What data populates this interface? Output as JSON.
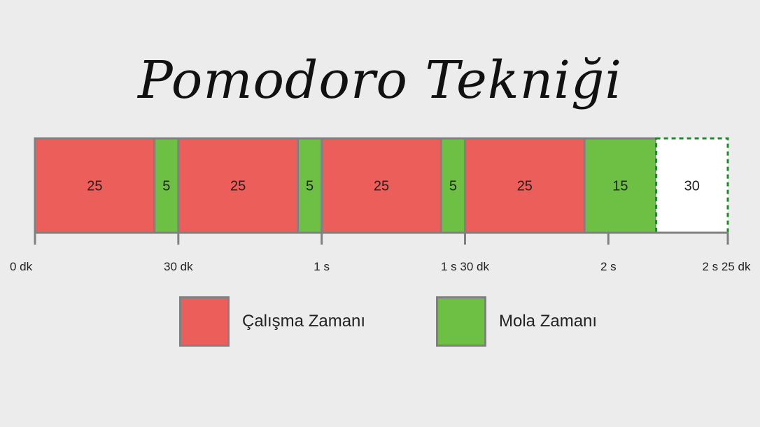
{
  "title": "Pomodoro Tekniği",
  "colors": {
    "work": "#ec5e59",
    "break": "#6ec045",
    "optional_border": "#1f8a2a",
    "border": "#808080"
  },
  "chart_data": {
    "type": "bar",
    "orientation": "horizontal-stacked-timeline",
    "unit": "dakika",
    "segments": [
      {
        "kind": "work",
        "minutes": 25,
        "label": "25"
      },
      {
        "kind": "break",
        "minutes": 5,
        "label": "5"
      },
      {
        "kind": "work",
        "minutes": 25,
        "label": "25"
      },
      {
        "kind": "break",
        "minutes": 5,
        "label": "5"
      },
      {
        "kind": "work",
        "minutes": 25,
        "label": "25"
      },
      {
        "kind": "break",
        "minutes": 5,
        "label": "5"
      },
      {
        "kind": "work",
        "minutes": 25,
        "label": "25"
      },
      {
        "kind": "break",
        "minutes": 15,
        "label": "15"
      },
      {
        "kind": "optional",
        "minutes": 15,
        "label": "30"
      }
    ],
    "ticks": [
      {
        "minutes": 0,
        "label": "0 dk"
      },
      {
        "minutes": 30,
        "label": "30 dk"
      },
      {
        "minutes": 60,
        "label": "1 s"
      },
      {
        "minutes": 90,
        "label": "1 s 30 dk"
      },
      {
        "minutes": 120,
        "label": "2 s"
      },
      {
        "minutes": 145,
        "label": "2 s 25 dk"
      }
    ],
    "xlim": [
      0,
      145
    ],
    "legend": {
      "position": "bottom",
      "items": [
        {
          "kind": "work",
          "label": "Çalışma Zamanı"
        },
        {
          "kind": "break",
          "label": "Mola Zamanı"
        }
      ]
    }
  }
}
